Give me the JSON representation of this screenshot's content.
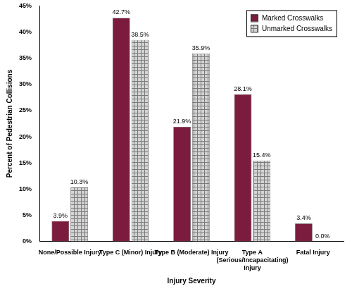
{
  "chart_data": {
    "type": "bar",
    "x_label": "Injury Severity",
    "y_label": "Percent of Pedestrian Collisions",
    "categories": [
      "None/Possible Injury",
      "Type C (Minor) Injury",
      "Type B (Moderate) Injury",
      "Type A (Serious/Incapacitating) Injury",
      "Fatal Injury"
    ],
    "series": [
      {
        "name": "Marked Crosswalks",
        "color": "#7b1c3e",
        "values": [
          3.9,
          42.7,
          21.9,
          28.1,
          3.4
        ],
        "value_labels": [
          "3.9%",
          "42.7%",
          "21.9%",
          "28.1%",
          "3.4%"
        ]
      },
      {
        "name": "Unmarked Crosswalks",
        "color": "#d4d4d4",
        "values": [
          10.3,
          38.5,
          35.9,
          15.4,
          0.0
        ],
        "value_labels": [
          "10.3%",
          "38.5%",
          "35.9%",
          "15.4%",
          "0.0%"
        ]
      }
    ],
    "ylim": [
      0,
      45
    ],
    "yticks": [
      {
        "value": 0,
        "label": "0%"
      },
      {
        "value": 5,
        "label": "5%"
      },
      {
        "value": 10,
        "label": "10%"
      },
      {
        "value": 15,
        "label": "15%"
      },
      {
        "value": 20,
        "label": "20%"
      },
      {
        "value": 25,
        "label": "25%"
      },
      {
        "value": 30,
        "label": "30%"
      },
      {
        "value": 35,
        "label": "35%"
      },
      {
        "value": 40,
        "label": "40%"
      },
      {
        "value": 45,
        "label": "45%"
      }
    ],
    "grid": false,
    "legend": "upper right",
    "data_labels": true
  }
}
